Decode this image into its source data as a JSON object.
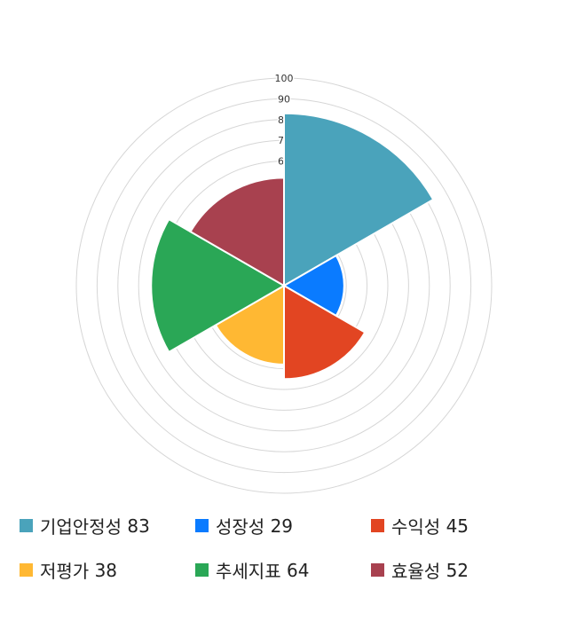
{
  "chart_data": {
    "type": "polarArea",
    "categories": [
      "기업안정성",
      "성장성",
      "수익성",
      "저평가",
      "추세지표",
      "효율성"
    ],
    "values": [
      83,
      29,
      45,
      38,
      64,
      52
    ],
    "colors": [
      "#4aa3bb",
      "#0a7bff",
      "#e24522",
      "#ffb833",
      "#2aa756",
      "#a8414f"
    ],
    "rlim": [
      0,
      100
    ],
    "r_ticks": [
      10,
      20,
      30,
      40,
      50,
      60,
      70,
      80,
      90,
      100
    ],
    "grid": true,
    "legend_position": "bottom"
  },
  "legend": [
    {
      "label": "기업안정성",
      "value": "83"
    },
    {
      "label": "성장성",
      "value": "29"
    },
    {
      "label": "수익성",
      "value": "45"
    },
    {
      "label": "저평가",
      "value": "38"
    },
    {
      "label": "추세지표",
      "value": "64"
    },
    {
      "label": "효율성",
      "value": "52"
    }
  ]
}
